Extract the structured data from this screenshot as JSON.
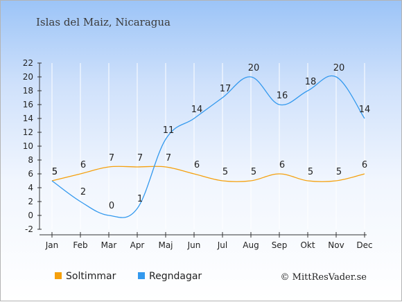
{
  "title": "Islas del Maiz, Nicaragua",
  "credit": "© MittResVader.se",
  "chart_data": {
    "type": "line",
    "categories": [
      "Jan",
      "Feb",
      "Mar",
      "Apr",
      "Maj",
      "Jun",
      "Jul",
      "Aug",
      "Sep",
      "Okt",
      "Nov",
      "Dec"
    ],
    "ylim": [
      -2,
      22
    ],
    "yticks": [
      -2,
      0,
      2,
      4,
      6,
      8,
      10,
      12,
      14,
      16,
      18,
      20,
      22
    ],
    "grid": "vertical",
    "legend_position": "bottom-left",
    "series": [
      {
        "name": "Soltimmar",
        "color": "#f5a00c",
        "values": [
          5,
          6,
          7,
          7,
          7,
          6,
          5,
          5,
          6,
          5,
          5,
          6
        ]
      },
      {
        "name": "Regndagar",
        "color": "#3399ee",
        "values": [
          5,
          2,
          0,
          1,
          11,
          14,
          17,
          20,
          16,
          18,
          20,
          14
        ]
      }
    ]
  }
}
